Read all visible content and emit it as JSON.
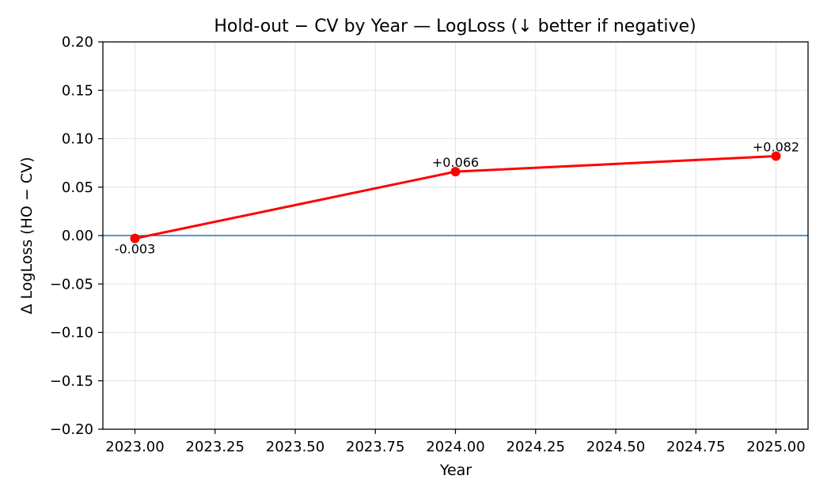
{
  "chart_data": {
    "type": "line",
    "title": "Hold-out − CV by Year — LogLoss  (↓ better if negative)",
    "xlabel": "Year",
    "ylabel": "Δ LogLoss (HO − CV)",
    "xlim": [
      2022.9,
      2025.1
    ],
    "ylim": [
      -0.2,
      0.2
    ],
    "x_ticks": [
      2023.0,
      2023.25,
      2023.5,
      2023.75,
      2024.0,
      2024.25,
      2024.5,
      2024.75,
      2025.0
    ],
    "x_tick_labels": [
      "2023.00",
      "2023.25",
      "2023.50",
      "2023.75",
      "2024.00",
      "2024.25",
      "2024.50",
      "2024.75",
      "2025.00"
    ],
    "y_ticks": [
      -0.2,
      -0.15,
      -0.1,
      -0.05,
      0.0,
      0.05,
      0.1,
      0.15,
      0.2
    ],
    "y_tick_labels": [
      "−0.20",
      "−0.15",
      "−0.10",
      "−0.05",
      "0.00",
      "0.05",
      "0.10",
      "0.15",
      "0.20"
    ],
    "grid": true,
    "reference_line": {
      "y": 0.0,
      "color": "#1f77b4"
    },
    "series": [
      {
        "name": "Δ LogLoss",
        "color": "#ff0000",
        "x": [
          2023,
          2024,
          2025
        ],
        "values": [
          -0.003,
          0.066,
          0.082
        ],
        "labels": [
          "-0.003",
          "+0.066",
          "+0.082"
        ]
      }
    ]
  }
}
